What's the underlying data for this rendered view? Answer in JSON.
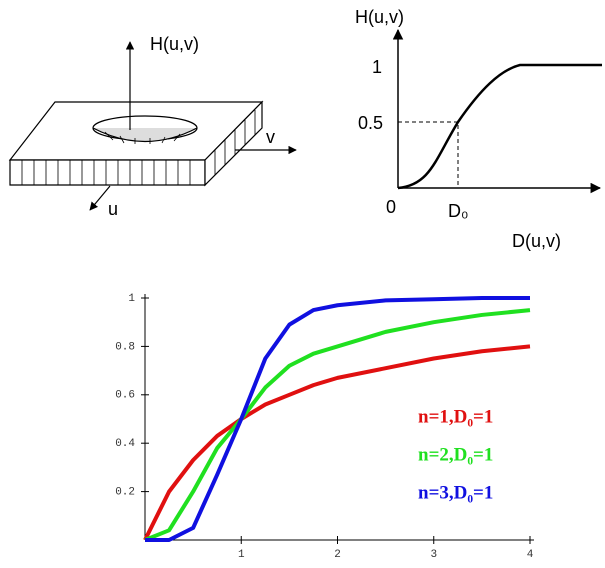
{
  "diagram_left": {
    "axis_h": "H(u,v)",
    "axis_v": "v",
    "axis_u": "u"
  },
  "diagram_right": {
    "y_label": "H(u,v)",
    "tick_1": "1",
    "tick_half": "0.5",
    "origin": "0",
    "cutoff": "D₀",
    "x_label": "D(u,v)"
  },
  "chart_data": {
    "type": "line",
    "x": [
      0,
      0.25,
      0.5,
      0.75,
      1,
      1.25,
      1.5,
      1.75,
      2,
      2.5,
      3,
      3.5,
      4
    ],
    "series": [
      {
        "name": "n=1,D₀=1",
        "color": "#e01010",
        "values": [
          0,
          0.2,
          0.33,
          0.43,
          0.5,
          0.56,
          0.6,
          0.64,
          0.67,
          0.71,
          0.75,
          0.78,
          0.8
        ]
      },
      {
        "name": "n=2,D₀=1",
        "color": "#20e020",
        "values": [
          0,
          0.04,
          0.2,
          0.38,
          0.5,
          0.63,
          0.72,
          0.77,
          0.8,
          0.86,
          0.9,
          0.93,
          0.95
        ]
      },
      {
        "name": "n=3,D₀=1",
        "color": "#1010e0",
        "values": [
          0,
          0,
          0.05,
          0.27,
          0.5,
          0.75,
          0.89,
          0.95,
          0.97,
          0.99,
          0.995,
          1,
          1
        ]
      }
    ],
    "xlim": [
      0,
      4
    ],
    "xticks": [
      1,
      2,
      3,
      4
    ],
    "ylim": [
      0,
      1
    ],
    "yticks": [
      0.2,
      0.4,
      0.6,
      0.8,
      1
    ]
  }
}
